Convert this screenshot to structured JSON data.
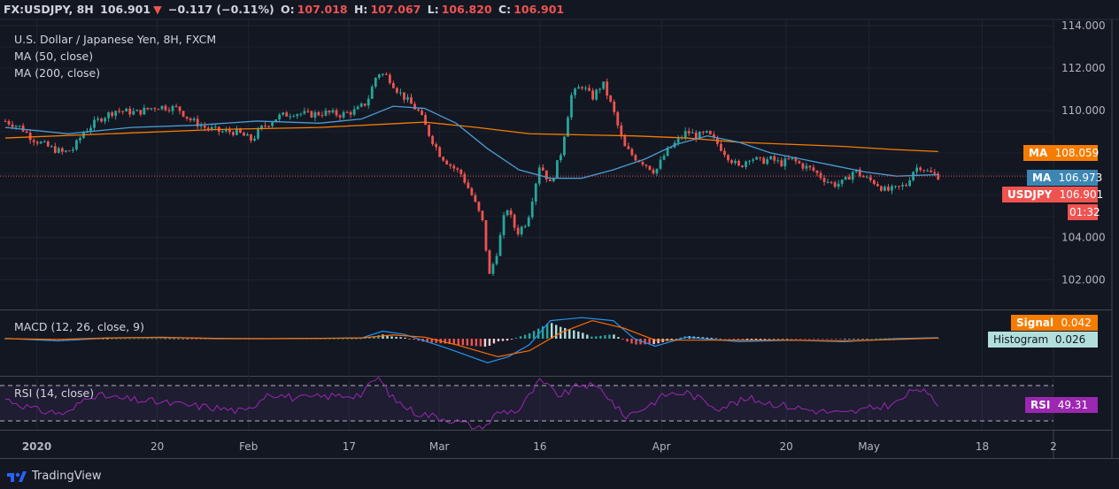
{
  "header": {
    "symbol": "FX:USDJPY, 8H",
    "last": "106.901",
    "arrow": "▼",
    "change": "−0.117 (−0.11%)",
    "o_label": "O:",
    "o": "107.018",
    "h_label": "H:",
    "h": "107.067",
    "l_label": "L:",
    "l": "106.820",
    "c_label": "C:",
    "c": "106.901"
  },
  "legend": {
    "title": "U.S. Dollar / Japanese Yen, 8H, FXCM",
    "ma50": "MA (50, close)",
    "ma200": "MA (200, close)",
    "macd": "MACD (12, 26, close, 9)",
    "rsi": "RSI (14, close)"
  },
  "tags": {
    "ma200_label": "MA",
    "ma200_value": "108.059",
    "ma50_label": "MA",
    "ma50_value": "106.973",
    "price_label": "USDJPY",
    "price_value": "106.901",
    "countdown": "01:32",
    "signal_label": "Signal",
    "signal_value": "0.042",
    "hist_label": "Histogram",
    "hist_value": "0.026",
    "rsi_label": "RSI",
    "rsi_value": "49.31"
  },
  "colors": {
    "up": "#26a69a",
    "down": "#ef5350",
    "ma50": "#4b9cd3",
    "ma200": "#f57c00",
    "macd": "#2196f3",
    "signal": "#ff6d00",
    "rsi": "#9c27b0"
  },
  "footer": {
    "brand": "TradingView"
  },
  "chart_data": [
    {
      "type": "candlestick",
      "title": "U.S. Dollar / Japanese Yen, 8H, FXCM",
      "ylim": [
        100.6,
        114.3
      ],
      "y_ticks": [
        102,
        104,
        110,
        112,
        114
      ],
      "y_tick_labels": [
        "102.000",
        "104.000",
        "110.000",
        "112.000",
        "114.000"
      ],
      "x_ticks": [
        "2020",
        "20",
        "Feb",
        "17",
        "Mar",
        "16",
        "Apr",
        "20",
        "May",
        "18",
        "2"
      ],
      "x_tick_pos": [
        0.03,
        0.145,
        0.232,
        0.328,
        0.414,
        0.51,
        0.626,
        0.745,
        0.824,
        0.932,
        1.0
      ],
      "current_price": 106.901,
      "close_path": [
        [
          0.0,
          109.5
        ],
        [
          0.015,
          109.2
        ],
        [
          0.025,
          108.7
        ],
        [
          0.04,
          108.3
        ],
        [
          0.055,
          108.0
        ],
        [
          0.065,
          108.2
        ],
        [
          0.075,
          109.0
        ],
        [
          0.09,
          109.6
        ],
        [
          0.105,
          110.0
        ],
        [
          0.125,
          109.9
        ],
        [
          0.145,
          110.2
        ],
        [
          0.165,
          110.1
        ],
        [
          0.175,
          109.6
        ],
        [
          0.19,
          109.2
        ],
        [
          0.205,
          109.0
        ],
        [
          0.22,
          109.0
        ],
        [
          0.235,
          108.6
        ],
        [
          0.245,
          109.2
        ],
        [
          0.26,
          109.7
        ],
        [
          0.275,
          109.9
        ],
        [
          0.29,
          109.8
        ],
        [
          0.305,
          109.9
        ],
        [
          0.32,
          109.8
        ],
        [
          0.335,
          110.0
        ],
        [
          0.345,
          110.4
        ],
        [
          0.355,
          111.8
        ],
        [
          0.365,
          111.6
        ],
        [
          0.375,
          110.9
        ],
        [
          0.385,
          110.4
        ],
        [
          0.395,
          109.9
        ],
        [
          0.405,
          108.8
        ],
        [
          0.415,
          107.9
        ],
        [
          0.425,
          107.4
        ],
        [
          0.435,
          107.0
        ],
        [
          0.445,
          106.0
        ],
        [
          0.455,
          104.8
        ],
        [
          0.462,
          102.2
        ],
        [
          0.47,
          103.5
        ],
        [
          0.478,
          105.5
        ],
        [
          0.488,
          104.2
        ],
        [
          0.498,
          104.8
        ],
        [
          0.51,
          107.5
        ],
        [
          0.52,
          106.5
        ],
        [
          0.53,
          108.0
        ],
        [
          0.54,
          110.7
        ],
        [
          0.55,
          111.2
        ],
        [
          0.56,
          110.6
        ],
        [
          0.57,
          111.3
        ],
        [
          0.58,
          110.0
        ],
        [
          0.59,
          108.3
        ],
        [
          0.6,
          107.8
        ],
        [
          0.61,
          107.5
        ],
        [
          0.62,
          107.1
        ],
        [
          0.63,
          108.0
        ],
        [
          0.64,
          108.5
        ],
        [
          0.65,
          109.0
        ],
        [
          0.66,
          108.8
        ],
        [
          0.67,
          108.9
        ],
        [
          0.68,
          108.4
        ],
        [
          0.69,
          107.8
        ],
        [
          0.7,
          107.3
        ],
        [
          0.71,
          107.8
        ],
        [
          0.72,
          107.6
        ],
        [
          0.73,
          107.7
        ],
        [
          0.74,
          107.5
        ],
        [
          0.75,
          107.7
        ],
        [
          0.76,
          107.4
        ],
        [
          0.77,
          107.2
        ],
        [
          0.78,
          106.8
        ],
        [
          0.79,
          106.5
        ],
        [
          0.8,
          106.6
        ],
        [
          0.81,
          107.2
        ],
        [
          0.82,
          106.8
        ],
        [
          0.83,
          106.6
        ],
        [
          0.84,
          106.2
        ],
        [
          0.85,
          106.3
        ],
        [
          0.86,
          106.5
        ],
        [
          0.865,
          107.1
        ],
        [
          0.872,
          107.4
        ],
        [
          0.88,
          107.1
        ],
        [
          0.89,
          106.9
        ]
      ],
      "series": [
        {
          "name": "MA (50, close)",
          "last": 106.973,
          "points": [
            [
              0.0,
              109.2
            ],
            [
              0.06,
              108.9
            ],
            [
              0.12,
              109.2
            ],
            [
              0.18,
              109.3
            ],
            [
              0.24,
              109.5
            ],
            [
              0.3,
              109.4
            ],
            [
              0.34,
              109.6
            ],
            [
              0.37,
              110.2
            ],
            [
              0.4,
              110.1
            ],
            [
              0.43,
              109.4
            ],
            [
              0.46,
              108.2
            ],
            [
              0.49,
              107.2
            ],
            [
              0.52,
              106.8
            ],
            [
              0.55,
              106.8
            ],
            [
              0.58,
              107.2
            ],
            [
              0.61,
              107.7
            ],
            [
              0.64,
              108.4
            ],
            [
              0.67,
              108.8
            ],
            [
              0.7,
              108.5
            ],
            [
              0.73,
              108.0
            ],
            [
              0.76,
              107.7
            ],
            [
              0.79,
              107.4
            ],
            [
              0.82,
              107.1
            ],
            [
              0.85,
              106.9
            ],
            [
              0.89,
              106.97
            ]
          ]
        },
        {
          "name": "MA (200, close)",
          "last": 108.059,
          "points": [
            [
              0.0,
              108.7
            ],
            [
              0.1,
              108.9
            ],
            [
              0.2,
              109.1
            ],
            [
              0.3,
              109.2
            ],
            [
              0.38,
              109.4
            ],
            [
              0.4,
              109.45
            ],
            [
              0.45,
              109.2
            ],
            [
              0.5,
              108.9
            ],
            [
              0.55,
              108.85
            ],
            [
              0.6,
              108.8
            ],
            [
              0.65,
              108.7
            ],
            [
              0.7,
              108.5
            ],
            [
              0.75,
              108.4
            ],
            [
              0.8,
              108.3
            ],
            [
              0.85,
              108.15
            ],
            [
              0.89,
              108.06
            ]
          ]
        }
      ]
    },
    {
      "type": "line",
      "title": "MACD (12, 26, close, 9)",
      "series": [
        {
          "name": "MACD",
          "points": [
            [
              0.0,
              0.02
            ],
            [
              0.05,
              -0.15
            ],
            [
              0.1,
              0.05
            ],
            [
              0.15,
              0.1
            ],
            [
              0.2,
              0.0
            ],
            [
              0.25,
              0.0
            ],
            [
              0.3,
              0.02
            ],
            [
              0.34,
              0.05
            ],
            [
              0.36,
              0.5
            ],
            [
              0.38,
              0.3
            ],
            [
              0.42,
              -0.6
            ],
            [
              0.46,
              -1.6
            ],
            [
              0.48,
              -1.2
            ],
            [
              0.5,
              -0.4
            ],
            [
              0.52,
              1.2
            ],
            [
              0.55,
              1.4
            ],
            [
              0.58,
              1.2
            ],
            [
              0.6,
              0.0
            ],
            [
              0.62,
              -0.5
            ],
            [
              0.65,
              0.1
            ],
            [
              0.7,
              -0.2
            ],
            [
              0.75,
              -0.1
            ],
            [
              0.8,
              -0.2
            ],
            [
              0.85,
              0.0
            ],
            [
              0.89,
              0.068
            ]
          ]
        },
        {
          "name": "Signal",
          "last": 0.042,
          "points": [
            [
              0.0,
              0.0
            ],
            [
              0.05,
              -0.05
            ],
            [
              0.1,
              0.05
            ],
            [
              0.15,
              0.08
            ],
            [
              0.2,
              0.02
            ],
            [
              0.25,
              0.0
            ],
            [
              0.3,
              0.02
            ],
            [
              0.34,
              0.05
            ],
            [
              0.37,
              0.25
            ],
            [
              0.4,
              0.1
            ],
            [
              0.43,
              -0.4
            ],
            [
              0.47,
              -1.2
            ],
            [
              0.5,
              -0.8
            ],
            [
              0.53,
              0.4
            ],
            [
              0.56,
              1.2
            ],
            [
              0.59,
              0.7
            ],
            [
              0.62,
              -0.1
            ],
            [
              0.66,
              -0.1
            ],
            [
              0.7,
              -0.1
            ],
            [
              0.75,
              -0.1
            ],
            [
              0.8,
              -0.15
            ],
            [
              0.85,
              -0.05
            ],
            [
              0.89,
              0.042
            ]
          ]
        },
        {
          "name": "Histogram",
          "last": 0.026
        }
      ]
    },
    {
      "type": "line",
      "title": "RSI (14, close)",
      "ylim": [
        20,
        80
      ],
      "bands": [
        70,
        30
      ],
      "series": [
        {
          "name": "RSI",
          "last": 49.31,
          "points": [
            [
              0.0,
              55
            ],
            [
              0.03,
              42
            ],
            [
              0.06,
              38
            ],
            [
              0.08,
              60
            ],
            [
              0.11,
              55
            ],
            [
              0.14,
              52
            ],
            [
              0.17,
              48
            ],
            [
              0.2,
              45
            ],
            [
              0.23,
              40
            ],
            [
              0.25,
              62
            ],
            [
              0.28,
              55
            ],
            [
              0.31,
              58
            ],
            [
              0.34,
              60
            ],
            [
              0.355,
              80
            ],
            [
              0.37,
              55
            ],
            [
              0.39,
              40
            ],
            [
              0.41,
              35
            ],
            [
              0.43,
              30
            ],
            [
              0.455,
              20
            ],
            [
              0.47,
              40
            ],
            [
              0.49,
              42
            ],
            [
              0.51,
              75
            ],
            [
              0.53,
              58
            ],
            [
              0.55,
              72
            ],
            [
              0.57,
              65
            ],
            [
              0.59,
              35
            ],
            [
              0.61,
              45
            ],
            [
              0.63,
              60
            ],
            [
              0.65,
              62
            ],
            [
              0.68,
              45
            ],
            [
              0.71,
              55
            ],
            [
              0.74,
              48
            ],
            [
              0.77,
              42
            ],
            [
              0.8,
              38
            ],
            [
              0.83,
              45
            ],
            [
              0.85,
              50
            ],
            [
              0.87,
              68
            ],
            [
              0.89,
              49.3
            ]
          ]
        }
      ]
    }
  ]
}
